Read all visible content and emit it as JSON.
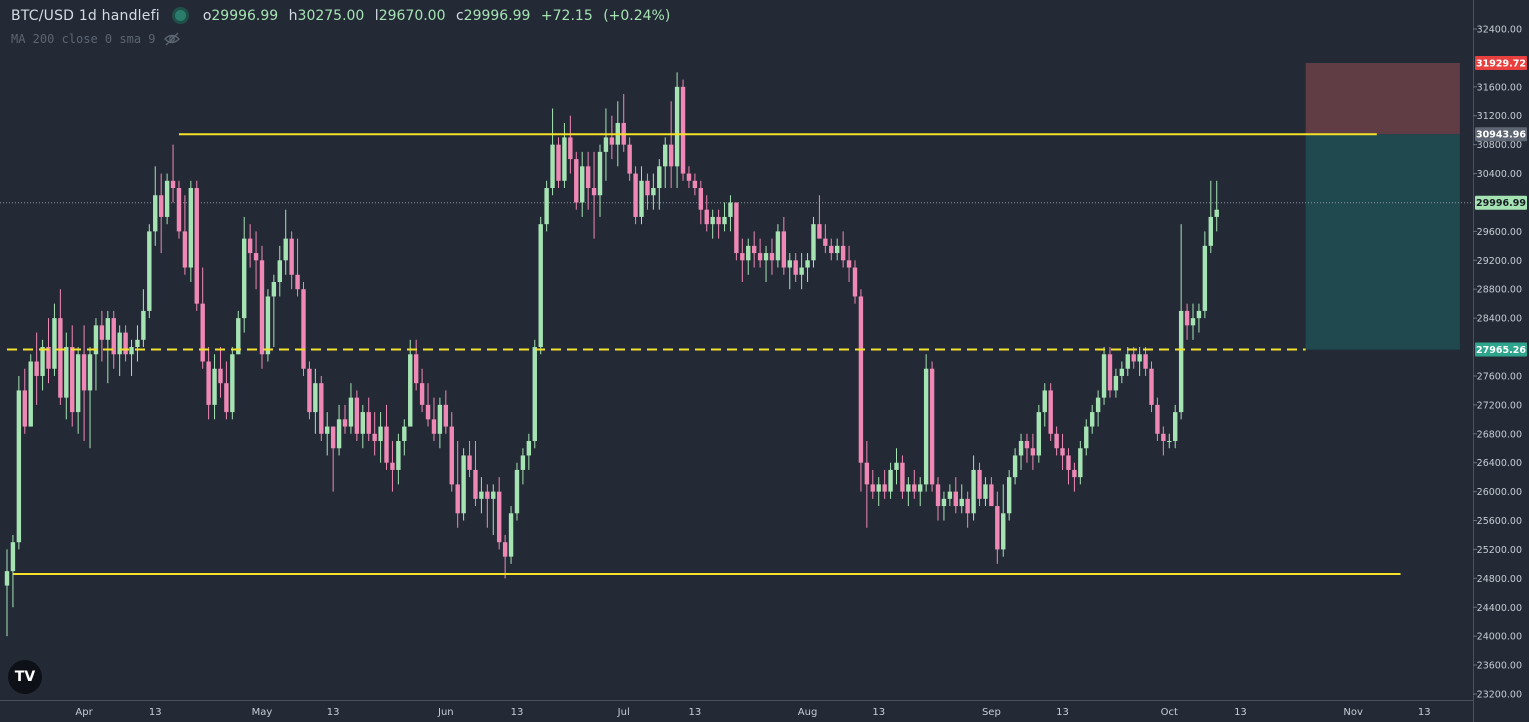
{
  "header": {
    "symbol": "BTC/USD",
    "interval": "1d",
    "author": "handlefi",
    "open_label": "o",
    "open": "29996.99",
    "high_label": "h",
    "high": "30275.00",
    "low_label": "l",
    "low": "29670.00",
    "close_label": "c",
    "close": "29996.99",
    "change": "+72.15",
    "change_pct": "(+0.24%)"
  },
  "indicator": {
    "label": "MA 200 close 0 sma 9"
  },
  "logo": {
    "text": "TV"
  },
  "colors": {
    "background": "#232a36",
    "up": "#a6e3b3",
    "down": "#f088b5",
    "level_line": "#f5e12a",
    "stop_zone": "#6b3f47",
    "target_zone": "#1f4f53"
  },
  "chart_data": {
    "type": "candlestick",
    "ylim": [
      23200,
      32400
    ],
    "y_ticks": [
      "32400.00",
      "31600.00",
      "31200.00",
      "30800.00",
      "30400.00",
      "29600.00",
      "29200.00",
      "28800.00",
      "28400.00",
      "27600.00",
      "27200.00",
      "26800.00",
      "26400.00",
      "26000.00",
      "25600.00",
      "25200.00",
      "24800.00",
      "24400.00",
      "24000.00",
      "23600.00",
      "23200.00"
    ],
    "x_ticks": [
      {
        "label": "Apr",
        "index": 13
      },
      {
        "label": "13",
        "index": 25
      },
      {
        "label": "May",
        "index": 43
      },
      {
        "label": "13",
        "index": 55
      },
      {
        "label": "Jun",
        "index": 74
      },
      {
        "label": "13",
        "index": 86
      },
      {
        "label": "Jul",
        "index": 104
      },
      {
        "label": "13",
        "index": 116
      },
      {
        "label": "Aug",
        "index": 135
      },
      {
        "label": "13",
        "index": 147
      },
      {
        "label": "Sep",
        "index": 166
      },
      {
        "label": "13",
        "index": 178
      },
      {
        "label": "Oct",
        "index": 196
      },
      {
        "label": "13",
        "index": 208
      },
      {
        "label": "Nov",
        "index": 227
      },
      {
        "label": "13",
        "index": 239
      }
    ],
    "price_labels": [
      {
        "text": "31929.72",
        "value": 31929.72,
        "color": "#e8403f"
      },
      {
        "text": "30943.96",
        "value": 30943.96,
        "color": "#5f6673"
      },
      {
        "text": "29996.99",
        "value": 29996.99,
        "color": "#a6e3b3"
      },
      {
        "text": "27965.26",
        "value": 27965.26,
        "color": "#2fa58d"
      }
    ],
    "levels": [
      {
        "value": 30943.96,
        "start_index": 29,
        "end_index": 231,
        "style": "solid"
      },
      {
        "value": 27965.26,
        "start_index": 0,
        "end_index": 219,
        "style": "dashed"
      },
      {
        "value": 24860,
        "start_index": 1,
        "end_index": 235,
        "style": "solid"
      }
    ],
    "current_price": 29996.99,
    "position": {
      "start_index": 219,
      "end_index": 245,
      "stop": 31929.72,
      "entry": 30943.96,
      "target": 27965.26
    },
    "candles": [
      [
        24700,
        25200,
        24000,
        24900
      ],
      [
        24900,
        25400,
        24400,
        25300
      ],
      [
        25300,
        27600,
        25200,
        27400
      ],
      [
        27400,
        27700,
        26800,
        26900
      ],
      [
        26900,
        27900,
        26900,
        27800
      ],
      [
        27800,
        28200,
        27200,
        27600
      ],
      [
        27600,
        28100,
        27400,
        28000
      ],
      [
        28000,
        28400,
        27500,
        27700
      ],
      [
        27700,
        28600,
        27600,
        28400
      ],
      [
        28400,
        28800,
        27200,
        27300
      ],
      [
        27300,
        28200,
        27000,
        28000
      ],
      [
        28000,
        28300,
        26900,
        27100
      ],
      [
        27100,
        28000,
        26800,
        27900
      ],
      [
        27900,
        28300,
        26700,
        27400
      ],
      [
        27400,
        28000,
        26600,
        27900
      ],
      [
        27900,
        28400,
        27400,
        28300
      ],
      [
        28300,
        28500,
        27800,
        28100
      ],
      [
        28100,
        28500,
        27500,
        28400
      ],
      [
        28400,
        28500,
        27700,
        27900
      ],
      [
        27900,
        28300,
        27600,
        28200
      ],
      [
        28200,
        28300,
        27800,
        27900
      ],
      [
        27900,
        28100,
        27600,
        28000
      ],
      [
        28000,
        28300,
        27800,
        28100
      ],
      [
        28100,
        28800,
        28000,
        28500
      ],
      [
        28500,
        29700,
        28400,
        29600
      ],
      [
        29600,
        30500,
        29400,
        30100
      ],
      [
        30100,
        30400,
        29300,
        29800
      ],
      [
        29800,
        30400,
        29700,
        30300
      ],
      [
        30300,
        30800,
        30000,
        30200
      ],
      [
        30200,
        30300,
        29500,
        29600
      ],
      [
        29600,
        30100,
        29000,
        29100
      ],
      [
        29100,
        30300,
        28900,
        30200
      ],
      [
        30200,
        30300,
        28500,
        28600
      ],
      [
        28600,
        29100,
        27700,
        27800
      ],
      [
        27800,
        28000,
        27000,
        27200
      ],
      [
        27200,
        27900,
        27000,
        27700
      ],
      [
        27700,
        28000,
        27300,
        27500
      ],
      [
        27500,
        27800,
        27000,
        27100
      ],
      [
        27100,
        28000,
        27000,
        27900
      ],
      [
        27900,
        28500,
        27900,
        28400
      ],
      [
        28400,
        29800,
        28200,
        29500
      ],
      [
        29500,
        29700,
        29100,
        29300
      ],
      [
        29300,
        29600,
        28800,
        29200
      ],
      [
        29200,
        29400,
        27700,
        27900
      ],
      [
        27900,
        28800,
        27800,
        28700
      ],
      [
        28700,
        29000,
        28000,
        28900
      ],
      [
        28900,
        29400,
        28700,
        29200
      ],
      [
        29200,
        29900,
        29000,
        29500
      ],
      [
        29500,
        29600,
        28800,
        29000
      ],
      [
        29000,
        29500,
        28700,
        28800
      ],
      [
        28800,
        28900,
        27600,
        27700
      ],
      [
        27700,
        27800,
        27000,
        27100
      ],
      [
        27100,
        27700,
        26800,
        27500
      ],
      [
        27500,
        27600,
        26700,
        26800
      ],
      [
        26800,
        27100,
        26500,
        26900
      ],
      [
        26900,
        26900,
        26000,
        26600
      ],
      [
        26600,
        27200,
        26500,
        27000
      ],
      [
        27000,
        27200,
        26800,
        26900
      ],
      [
        26900,
        27500,
        26800,
        27300
      ],
      [
        27300,
        27400,
        26700,
        26800
      ],
      [
        26800,
        27200,
        26600,
        27100
      ],
      [
        27100,
        27300,
        26700,
        26800
      ],
      [
        26800,
        27100,
        26500,
        26700
      ],
      [
        26700,
        27100,
        26400,
        26900
      ],
      [
        26900,
        27200,
        26300,
        26400
      ],
      [
        26400,
        26700,
        26000,
        26300
      ],
      [
        26300,
        26800,
        26100,
        26700
      ],
      [
        26700,
        27000,
        26500,
        26900
      ],
      [
        26900,
        28100,
        26900,
        27900
      ],
      [
        27900,
        28100,
        27400,
        27500
      ],
      [
        27500,
        27700,
        27100,
        27200
      ],
      [
        27200,
        27500,
        26900,
        27000
      ],
      [
        27000,
        27300,
        26700,
        26800
      ],
      [
        26800,
        27300,
        26600,
        27200
      ],
      [
        27200,
        27400,
        26800,
        26900
      ],
      [
        26900,
        27100,
        26000,
        26100
      ],
      [
        26100,
        26700,
        25500,
        25700
      ],
      [
        25700,
        26600,
        25600,
        26500
      ],
      [
        26500,
        26700,
        26200,
        26300
      ],
      [
        26300,
        26700,
        25800,
        25900
      ],
      [
        25900,
        26200,
        25700,
        26000
      ],
      [
        26000,
        26100,
        25500,
        25900
      ],
      [
        25900,
        26100,
        25400,
        26000
      ],
      [
        26000,
        26200,
        25200,
        25300
      ],
      [
        25300,
        25400,
        24800,
        25100
      ],
      [
        25100,
        25800,
        25000,
        25700
      ],
      [
        25700,
        26400,
        25600,
        26300
      ],
      [
        26300,
        26600,
        26100,
        26500
      ],
      [
        26500,
        26800,
        26300,
        26700
      ],
      [
        26700,
        28100,
        26600,
        28000
      ],
      [
        28000,
        29800,
        27900,
        29700
      ],
      [
        29700,
        30300,
        29600,
        30200
      ],
      [
        30200,
        31300,
        30100,
        30800
      ],
      [
        30800,
        30900,
        30200,
        30300
      ],
      [
        30300,
        31100,
        30200,
        30900
      ],
      [
        30900,
        31200,
        30400,
        30600
      ],
      [
        30600,
        30700,
        29900,
        30000
      ],
      [
        30000,
        30700,
        29800,
        30500
      ],
      [
        30500,
        30700,
        29900,
        30200
      ],
      [
        30200,
        30700,
        29500,
        30100
      ],
      [
        30100,
        30800,
        29800,
        30700
      ],
      [
        30700,
        31300,
        30300,
        30900
      ],
      [
        30900,
        31200,
        30600,
        30800
      ],
      [
        30800,
        31400,
        30500,
        31100
      ],
      [
        31100,
        31500,
        30700,
        30800
      ],
      [
        30800,
        30900,
        30300,
        30400
      ],
      [
        30400,
        30500,
        29700,
        29800
      ],
      [
        29800,
        30500,
        29700,
        30300
      ],
      [
        30300,
        30400,
        29900,
        30100
      ],
      [
        30100,
        30400,
        29900,
        30200
      ],
      [
        30200,
        30600,
        29900,
        30500
      ],
      [
        30500,
        30900,
        30200,
        30800
      ],
      [
        30800,
        31400,
        30200,
        30500
      ],
      [
        30500,
        31800,
        30200,
        31600
      ],
      [
        31600,
        31700,
        30300,
        30400
      ],
      [
        30400,
        30500,
        30200,
        30300
      ],
      [
        30300,
        30400,
        30100,
        30200
      ],
      [
        30200,
        30300,
        29700,
        29900
      ],
      [
        29900,
        30100,
        29600,
        29700
      ],
      [
        29700,
        29900,
        29500,
        29800
      ],
      [
        29800,
        29900,
        29500,
        29700
      ],
      [
        29700,
        30000,
        29600,
        29800
      ],
      [
        29800,
        30100,
        29600,
        30000
      ],
      [
        30000,
        30000,
        29200,
        29300
      ],
      [
        29300,
        29500,
        28900,
        29200
      ],
      [
        29200,
        29500,
        29000,
        29400
      ],
      [
        29400,
        29600,
        29100,
        29300
      ],
      [
        29300,
        29500,
        29100,
        29200
      ],
      [
        29200,
        29400,
        28900,
        29300
      ],
      [
        29300,
        29500,
        29000,
        29200
      ],
      [
        29200,
        29700,
        29100,
        29600
      ],
      [
        29600,
        29800,
        29000,
        29100
      ],
      [
        29100,
        29300,
        28800,
        29200
      ],
      [
        29200,
        29300,
        28900,
        29000
      ],
      [
        29000,
        29300,
        28800,
        29100
      ],
      [
        29100,
        29300,
        28900,
        29200
      ],
      [
        29200,
        29800,
        29100,
        29700
      ],
      [
        29700,
        30100,
        29500,
        29500
      ],
      [
        29500,
        29700,
        29300,
        29400
      ],
      [
        29400,
        29500,
        29200,
        29300
      ],
      [
        29300,
        29500,
        29200,
        29400
      ],
      [
        29400,
        29600,
        29100,
        29200
      ],
      [
        29200,
        29400,
        28900,
        29100
      ],
      [
        29100,
        29200,
        28600,
        28700
      ],
      [
        28700,
        28800,
        26000,
        26400
      ],
      [
        26400,
        26700,
        25500,
        26100
      ],
      [
        26100,
        26300,
        25900,
        26000
      ],
      [
        26000,
        26200,
        25800,
        26100
      ],
      [
        26100,
        26300,
        25900,
        26000
      ],
      [
        26000,
        26400,
        25900,
        26300
      ],
      [
        26300,
        26600,
        26100,
        26400
      ],
      [
        26400,
        26500,
        25900,
        26000
      ],
      [
        26000,
        26200,
        25800,
        26100
      ],
      [
        26100,
        26300,
        25900,
        26000
      ],
      [
        26000,
        26200,
        25800,
        26100
      ],
      [
        26100,
        27900,
        26000,
        27700
      ],
      [
        27700,
        27800,
        26000,
        26100
      ],
      [
        26100,
        26200,
        25600,
        25800
      ],
      [
        25800,
        26000,
        25600,
        25900
      ],
      [
        25900,
        26100,
        25800,
        26000
      ],
      [
        26000,
        26200,
        25700,
        25800
      ],
      [
        25800,
        26100,
        25700,
        25900
      ],
      [
        25900,
        26000,
        25500,
        25700
      ],
      [
        25700,
        26500,
        25600,
        26300
      ],
      [
        26300,
        26400,
        25800,
        25900
      ],
      [
        25900,
        26200,
        25800,
        26100
      ],
      [
        26100,
        26200,
        25800,
        25800
      ],
      [
        25800,
        26000,
        25000,
        25200
      ],
      [
        25200,
        26100,
        25100,
        25700
      ],
      [
        25700,
        26300,
        25600,
        26200
      ],
      [
        26200,
        26600,
        26100,
        26500
      ],
      [
        26500,
        26800,
        26300,
        26700
      ],
      [
        26700,
        26800,
        26400,
        26600
      ],
      [
        26600,
        26800,
        26300,
        26500
      ],
      [
        26500,
        27200,
        26400,
        27100
      ],
      [
        27100,
        27500,
        26900,
        27400
      ],
      [
        27400,
        27500,
        26700,
        26800
      ],
      [
        26800,
        26900,
        26500,
        26600
      ],
      [
        26600,
        26800,
        26300,
        26500
      ],
      [
        26500,
        26600,
        26100,
        26300
      ],
      [
        26300,
        26400,
        26000,
        26200
      ],
      [
        26200,
        26700,
        26100,
        26600
      ],
      [
        26600,
        27000,
        26500,
        26900
      ],
      [
        26900,
        27200,
        26800,
        27100
      ],
      [
        27100,
        27400,
        26900,
        27300
      ],
      [
        27300,
        28000,
        27200,
        27900
      ],
      [
        27900,
        28000,
        27300,
        27400
      ],
      [
        27400,
        27700,
        27300,
        27600
      ],
      [
        27600,
        27800,
        27500,
        27700
      ],
      [
        27700,
        28000,
        27600,
        27900
      ],
      [
        27900,
        28000,
        27700,
        27800
      ],
      [
        27800,
        28000,
        27600,
        27900
      ],
      [
        27900,
        28000,
        27600,
        27700
      ],
      [
        27700,
        27800,
        27100,
        27200
      ],
      [
        27200,
        27300,
        26700,
        26800
      ],
      [
        26800,
        26900,
        26500,
        26700
      ],
      [
        26700,
        26800,
        26600,
        26700
      ],
      [
        26700,
        27200,
        26600,
        27100
      ],
      [
        27100,
        29700,
        27000,
        28500
      ],
      [
        28500,
        28600,
        28100,
        28300
      ],
      [
        28300,
        28600,
        28100,
        28400
      ],
      [
        28400,
        28600,
        28200,
        28500
      ],
      [
        28500,
        29600,
        28400,
        29400
      ],
      [
        29400,
        30300,
        29300,
        29800
      ],
      [
        29800,
        30300,
        29600,
        29900
      ]
    ]
  }
}
